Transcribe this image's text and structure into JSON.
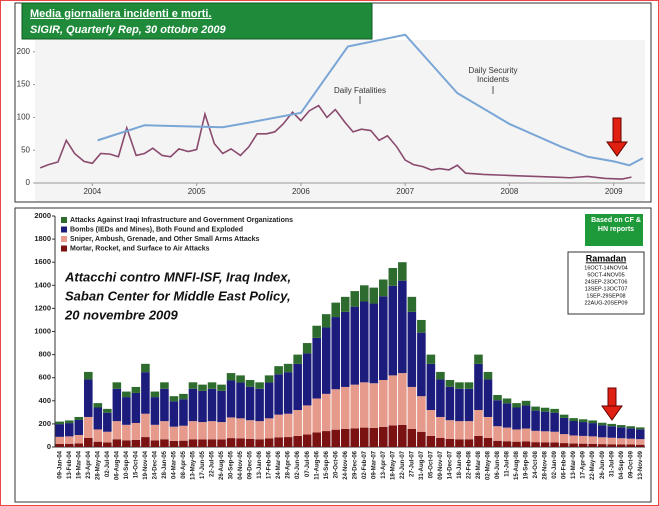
{
  "chart_data": [
    {
      "type": "line",
      "title": "Media giornaliera incidenti e morti.",
      "subtitle": "SIGIR, Quarterly Rep, 30 ottobre 2009",
      "xlim": [
        2003.95,
        2009.8
      ],
      "xticks": [
        {
          "value": 2004.5,
          "label": "2004"
        },
        {
          "value": 2005.5,
          "label": "2005"
        },
        {
          "value": 2006.5,
          "label": "2006"
        },
        {
          "value": 2007.5,
          "label": "2007"
        },
        {
          "value": 2008.5,
          "label": "2008"
        },
        {
          "value": 2009.5,
          "label": "2009"
        }
      ],
      "ylim": [
        0,
        218
      ],
      "yticks": [
        0,
        50,
        100,
        150,
        200
      ],
      "series": [
        {
          "name": "Daily Fatalities",
          "color": "#8a4a6e",
          "x": [
            2004.0,
            2004.08,
            2004.17,
            2004.25,
            2004.33,
            2004.42,
            2004.5,
            2004.58,
            2004.67,
            2004.75,
            2004.83,
            2004.92,
            2005.0,
            2005.08,
            2005.17,
            2005.25,
            2005.33,
            2005.42,
            2005.5,
            2005.58,
            2005.67,
            2005.75,
            2005.83,
            2005.92,
            2006.0,
            2006.08,
            2006.17,
            2006.25,
            2006.33,
            2006.42,
            2006.5,
            2006.58,
            2006.67,
            2006.75,
            2006.83,
            2006.92,
            2007.0,
            2007.08,
            2007.17,
            2007.25,
            2007.33,
            2007.42,
            2007.5,
            2007.58,
            2007.67,
            2007.75,
            2007.83,
            2007.92,
            2008.0,
            2008.08,
            2008.17,
            2008.25,
            2008.42,
            2008.58,
            2008.75,
            2008.92,
            2009.08,
            2009.25,
            2009.42,
            2009.58,
            2009.67
          ],
          "values": [
            23,
            28,
            32,
            65,
            45,
            33,
            30,
            45,
            44,
            40,
            84,
            42,
            45,
            53,
            42,
            40,
            52,
            48,
            51,
            105,
            60,
            45,
            52,
            42,
            55,
            75,
            75,
            78,
            90,
            108,
            95,
            110,
            118,
            100,
            112,
            93,
            78,
            82,
            80,
            65,
            72,
            55,
            35,
            28,
            25,
            20,
            22,
            20,
            27,
            15,
            14,
            13,
            12,
            11,
            10,
            9,
            8,
            10,
            7,
            6,
            9
          ]
        },
        {
          "name": "Daily Security Incidents",
          "color": "#7aa6d6",
          "x": [
            2004.55,
            2005.0,
            2005.5,
            2005.75,
            2006.0,
            2006.5,
            2006.95,
            2007.5,
            2008.0,
            2008.5,
            2009.0,
            2009.25,
            2009.5,
            2009.65,
            2009.78
          ],
          "values": [
            65,
            88,
            86,
            85,
            92,
            107,
            208,
            226,
            137,
            90,
            55,
            40,
            33,
            27,
            38
          ]
        }
      ]
    },
    {
      "type": "stacked_bar",
      "annotations": [
        "Attacchi contro MNFI-ISF, Iraq Index,",
        "Saban Center for Middle East Policy,",
        "20 novembre 2009",
        "Based on CF & HN reports",
        "Ramadan",
        "16OCT-14NOV04",
        "5OCT-4NOV05",
        "24SEP-23OCT06",
        "13SEP-13OCT07",
        "1SEP-29SEP08",
        "22AUG-20SEP09"
      ],
      "ylim": [
        0,
        2000
      ],
      "yticks": [
        0,
        200,
        400,
        600,
        800,
        1000,
        1200,
        1400,
        1600,
        1800,
        2000
      ],
      "categories": [
        "09-Jan-04",
        "13-Feb-04",
        "19-Mar-04",
        "23-Apr-04",
        "28-May-04",
        "02-Jul-04",
        "06-Aug-04",
        "10-Sep-04",
        "15-Oct-04",
        "19-Nov-04",
        "24-Dec-04",
        "28-Jan-05",
        "04-Mar-05",
        "08-Apr-05",
        "13-May-05",
        "17-Jun-05",
        "22-Jul-05",
        "26-Aug-05",
        "30-Sep-05",
        "04-Nov-05",
        "09-Dec-05",
        "13-Jan-06",
        "17-Feb-06",
        "24-Mar-06",
        "28-Apr-06",
        "02-Jun-06",
        "07-Jul-06",
        "11-Aug-06",
        "15-Sep-06",
        "20-Oct-06",
        "24-Nov-06",
        "29-Dec-06",
        "02-Feb-07",
        "09-Mar-07",
        "13-Apr-07",
        "18-May-07",
        "22-Jun-07",
        "27-Jul-07",
        "31-Aug-07",
        "05-Oct-07",
        "09-Nov-07",
        "14-Dec-07",
        "18-Jan-08",
        "22-Feb-08",
        "28-Mar-08",
        "02-May-08",
        "06-Jun-08",
        "11-Jul-08",
        "15-Aug-08",
        "19-Sep-08",
        "24-Oct-08",
        "28-Nov-08",
        "02-Jan-09",
        "06-Feb-09",
        "13-Mar-09",
        "17-Apr-09",
        "22-May-09",
        "26-Jun-09",
        "31-Jul-09",
        "04-Sep-09",
        "09-Oct-09",
        "13-Nov-09"
      ],
      "series": [
        {
          "name": "Attacks Against Iraqi Infrastructure and Government Organizations",
          "color": "#2e6b2e",
          "values": [
            22,
            23,
            26,
            65,
            38,
            33,
            56,
            48,
            52,
            72,
            48,
            56,
            44,
            46,
            56,
            54,
            56,
            54,
            64,
            62,
            58,
            56,
            62,
            70,
            72,
            80,
            90,
            105,
            115,
            125,
            130,
            135,
            140,
            138,
            145,
            155,
            160,
            130,
            110,
            80,
            65,
            58,
            56,
            56,
            80,
            65,
            45,
            42,
            38,
            40,
            35,
            34,
            33,
            28,
            25,
            24,
            23,
            21,
            20,
            19,
            18,
            17
          ]
        },
        {
          "name": "Bombs (IEDs and Mines), Both Found and Exploded",
          "color": "#1c1c7c",
          "values": [
            110,
            115,
            130,
            325,
            190,
            165,
            280,
            240,
            260,
            360,
            240,
            280,
            220,
            230,
            280,
            270,
            280,
            270,
            320,
            310,
            290,
            280,
            310,
            350,
            360,
            400,
            450,
            525,
            575,
            625,
            650,
            675,
            700,
            690,
            725,
            775,
            800,
            650,
            550,
            400,
            325,
            290,
            280,
            280,
            400,
            325,
            225,
            210,
            190,
            200,
            175,
            170,
            165,
            140,
            125,
            120,
            115,
            105,
            100,
            95,
            90,
            85
          ]
        },
        {
          "name": "Sniper, Ambush, Grenade, and Other Small Arms Attacks",
          "color": "#e59a8c",
          "values": [
            62,
            64,
            73,
            182,
            106,
            92,
            157,
            134,
            146,
            202,
            134,
            157,
            123,
            129,
            157,
            151,
            157,
            151,
            179,
            174,
            162,
            157,
            174,
            196,
            202,
            224,
            252,
            294,
            322,
            350,
            364,
            378,
            392,
            386,
            406,
            434,
            448,
            364,
            308,
            224,
            182,
            162,
            157,
            157,
            224,
            182,
            126,
            118,
            106,
            112,
            98,
            95,
            92,
            78,
            70,
            67,
            64,
            59,
            56,
            53,
            50,
            48
          ]
        },
        {
          "name": "Mortar, Rocket, and Surface to Air Attacks",
          "color": "#7a1212",
          "values": [
            26,
            28,
            31,
            78,
            46,
            40,
            67,
            58,
            62,
            86,
            58,
            67,
            53,
            55,
            67,
            65,
            67,
            65,
            77,
            74,
            70,
            67,
            74,
            84,
            86,
            96,
            108,
            126,
            138,
            150,
            156,
            162,
            168,
            166,
            174,
            186,
            192,
            156,
            132,
            96,
            78,
            70,
            67,
            67,
            96,
            78,
            54,
            50,
            46,
            48,
            42,
            41,
            40,
            34,
            30,
            29,
            28,
            25,
            24,
            23,
            22,
            20
          ]
        }
      ]
    }
  ]
}
